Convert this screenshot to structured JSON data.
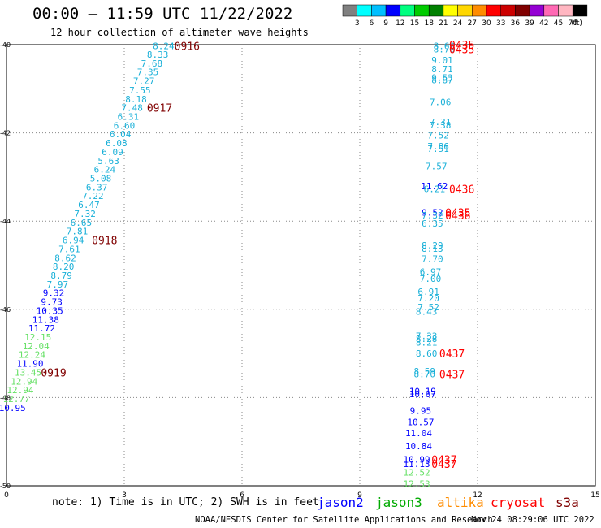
{
  "header": {
    "title": "00:00 — 11:59 UTC 11/22/2022",
    "subtitle": "12 hour collection of altimeter wave heights"
  },
  "scale": {
    "labels": [
      "3",
      "6",
      "9",
      "12",
      "15",
      "18",
      "21",
      "24",
      "27",
      "30",
      "33",
      "36",
      "39",
      "42",
      "45",
      "70"
    ],
    "unit": "(ft)",
    "colors": [
      "#808080",
      "#00ffff",
      "#00bfff",
      "#0000ff",
      "#00ff7f",
      "#00cc00",
      "#008000",
      "#ffff00",
      "#ffd700",
      "#ff8c00",
      "#ff0000",
      "#cc0000",
      "#800000",
      "#9400d3",
      "#ff69b4",
      "#ffb6c1",
      "#000000"
    ]
  },
  "chart_data": {
    "type": "scatter",
    "title": "00:00 — 11:59 UTC 11/22/2022",
    "xlim": [
      0,
      15
    ],
    "ylim": [
      -50,
      -40
    ],
    "x_ticks": [
      "0",
      "3",
      "6",
      "9",
      "12",
      "15"
    ],
    "y_ticks": [
      "-40",
      "-42",
      "-44",
      "-46",
      "-48",
      "-50"
    ],
    "points": [
      {
        "x": 4.0,
        "y": -40.03,
        "label": "8.24",
        "color": "#1ab0d8"
      },
      {
        "x": 3.85,
        "y": -40.22,
        "label": "8.33",
        "color": "#1ab0d8"
      },
      {
        "x": 3.7,
        "y": -40.42,
        "label": "7.68",
        "color": "#1ab0d8"
      },
      {
        "x": 3.6,
        "y": -40.62,
        "label": "7.35",
        "color": "#1ab0d8"
      },
      {
        "x": 3.5,
        "y": -40.82,
        "label": "7.27",
        "color": "#1ab0d8"
      },
      {
        "x": 3.4,
        "y": -41.03,
        "label": "7.55",
        "color": "#1ab0d8"
      },
      {
        "x": 3.3,
        "y": -41.23,
        "label": "8.18",
        "color": "#1ab0d8"
      },
      {
        "x": 3.2,
        "y": -41.43,
        "label": "7.48",
        "color": "#1ab0d8"
      },
      {
        "x": 3.1,
        "y": -41.63,
        "label": "6.31",
        "color": "#1ab0d8"
      },
      {
        "x": 3.0,
        "y": -41.83,
        "label": "6.60",
        "color": "#1ab0d8"
      },
      {
        "x": 2.9,
        "y": -42.03,
        "label": "6.04",
        "color": "#1ab0d8"
      },
      {
        "x": 2.8,
        "y": -42.23,
        "label": "6.08",
        "color": "#1ab0d8"
      },
      {
        "x": 2.7,
        "y": -42.43,
        "label": "6.09",
        "color": "#1ab0d8"
      },
      {
        "x": 2.6,
        "y": -42.63,
        "label": "5.63",
        "color": "#1ab0d8"
      },
      {
        "x": 2.5,
        "y": -42.83,
        "label": "6.24",
        "color": "#1ab0d8"
      },
      {
        "x": 2.4,
        "y": -43.03,
        "label": "5.08",
        "color": "#1ab0d8"
      },
      {
        "x": 2.3,
        "y": -43.23,
        "label": "6.37",
        "color": "#1ab0d8"
      },
      {
        "x": 2.2,
        "y": -43.43,
        "label": "7.22",
        "color": "#1ab0d8"
      },
      {
        "x": 2.1,
        "y": -43.63,
        "label": "6.47",
        "color": "#1ab0d8"
      },
      {
        "x": 2.0,
        "y": -43.83,
        "label": "7.32",
        "color": "#1ab0d8"
      },
      {
        "x": 1.9,
        "y": -44.03,
        "label": "6.65",
        "color": "#1ab0d8"
      },
      {
        "x": 1.8,
        "y": -44.23,
        "label": "7.81",
        "color": "#1ab0d8"
      },
      {
        "x": 1.7,
        "y": -44.43,
        "label": "6.94",
        "color": "#1ab0d8"
      },
      {
        "x": 1.6,
        "y": -44.63,
        "label": "7.61",
        "color": "#1ab0d8"
      },
      {
        "x": 1.5,
        "y": -44.83,
        "label": "8.62",
        "color": "#1ab0d8"
      },
      {
        "x": 1.45,
        "y": -45.03,
        "label": "8.20",
        "color": "#1ab0d8"
      },
      {
        "x": 1.4,
        "y": -45.23,
        "label": "8.79",
        "color": "#1ab0d8"
      },
      {
        "x": 1.3,
        "y": -45.43,
        "label": "7.97",
        "color": "#1ab0d8"
      },
      {
        "x": 1.2,
        "y": -45.63,
        "label": "9.32",
        "color": "#0000ff"
      },
      {
        "x": 1.15,
        "y": -45.83,
        "label": "9.73",
        "color": "#0000ff"
      },
      {
        "x": 1.1,
        "y": -46.03,
        "label": "10.35",
        "color": "#0000ff"
      },
      {
        "x": 1.0,
        "y": -46.23,
        "label": "11.38",
        "color": "#0000ff"
      },
      {
        "x": 0.9,
        "y": -46.43,
        "label": "11.72",
        "color": "#0000ff"
      },
      {
        "x": 0.8,
        "y": -46.63,
        "label": "12.15",
        "color": "#66e066"
      },
      {
        "x": 0.75,
        "y": -46.83,
        "label": "12.04",
        "color": "#66e066"
      },
      {
        "x": 0.65,
        "y": -47.03,
        "label": "12.24",
        "color": "#66e066"
      },
      {
        "x": 0.6,
        "y": -47.23,
        "label": "11.90",
        "color": "#0000ff"
      },
      {
        "x": 0.55,
        "y": -47.43,
        "label": "13.45",
        "color": "#66e066"
      },
      {
        "x": 0.45,
        "y": -47.63,
        "label": "12.94",
        "color": "#66e066"
      },
      {
        "x": 0.35,
        "y": -47.83,
        "label": "12.94",
        "color": "#66e066"
      },
      {
        "x": 0.25,
        "y": -48.03,
        "label": "12.77",
        "color": "#66e066"
      },
      {
        "x": 0.15,
        "y": -48.23,
        "label": "10.95",
        "color": "#0000ff"
      },
      {
        "x": 11.15,
        "y": -40.03,
        "label": "8.63",
        "color": "#1ab0d8"
      },
      {
        "x": 11.15,
        "y": -40.1,
        "label": "8.76",
        "color": "#1ab0d8"
      },
      {
        "x": 11.1,
        "y": -40.35,
        "label": "9.01",
        "color": "#1ab0d8"
      },
      {
        "x": 11.1,
        "y": -40.55,
        "label": "8.71",
        "color": "#1ab0d8"
      },
      {
        "x": 11.1,
        "y": -40.75,
        "label": "9.53",
        "color": "#1ab0d8"
      },
      {
        "x": 11.1,
        "y": -40.8,
        "label": "8.87",
        "color": "#1ab0d8"
      },
      {
        "x": 11.05,
        "y": -41.3,
        "label": "7.06",
        "color": "#1ab0d8"
      },
      {
        "x": 11.05,
        "y": -41.75,
        "label": "7.31",
        "color": "#1ab0d8"
      },
      {
        "x": 11.05,
        "y": -41.82,
        "label": "7.38",
        "color": "#1ab0d8"
      },
      {
        "x": 11.0,
        "y": -42.05,
        "label": "7.52",
        "color": "#1ab0d8"
      },
      {
        "x": 11.0,
        "y": -42.3,
        "label": "7.86",
        "color": "#1ab0d8"
      },
      {
        "x": 11.0,
        "y": -42.36,
        "label": "7.51",
        "color": "#1ab0d8"
      },
      {
        "x": 10.95,
        "y": -42.75,
        "label": "7.57",
        "color": "#1ab0d8"
      },
      {
        "x": 10.9,
        "y": -43.2,
        "label": "11.62",
        "color": "#0000ff"
      },
      {
        "x": 10.9,
        "y": -43.27,
        "label": "6.21",
        "color": "#1ab0d8"
      },
      {
        "x": 10.85,
        "y": -43.8,
        "label": "9.52",
        "color": "#0000ff"
      },
      {
        "x": 10.85,
        "y": -43.87,
        "label": "7.32",
        "color": "#1ab0d8"
      },
      {
        "x": 10.85,
        "y": -44.05,
        "label": "6.35",
        "color": "#1ab0d8"
      },
      {
        "x": 10.85,
        "y": -44.55,
        "label": "8.29",
        "color": "#1ab0d8"
      },
      {
        "x": 10.85,
        "y": -44.62,
        "label": "8.13",
        "color": "#1ab0d8"
      },
      {
        "x": 10.85,
        "y": -44.85,
        "label": "7.70",
        "color": "#1ab0d8"
      },
      {
        "x": 10.8,
        "y": -45.15,
        "label": "6.97",
        "color": "#1ab0d8"
      },
      {
        "x": 10.8,
        "y": -45.3,
        "label": "7.00",
        "color": "#1ab0d8"
      },
      {
        "x": 10.75,
        "y": -45.6,
        "label": "6.91",
        "color": "#1ab0d8"
      },
      {
        "x": 10.75,
        "y": -45.75,
        "label": "7.20",
        "color": "#1ab0d8"
      },
      {
        "x": 10.75,
        "y": -45.95,
        "label": "7.52",
        "color": "#1ab0d8"
      },
      {
        "x": 10.7,
        "y": -46.05,
        "label": "8.43",
        "color": "#1ab0d8"
      },
      {
        "x": 10.7,
        "y": -46.6,
        "label": "7.33",
        "color": "#1ab0d8"
      },
      {
        "x": 10.7,
        "y": -46.67,
        "label": "8.28",
        "color": "#1ab0d8"
      },
      {
        "x": 10.7,
        "y": -46.75,
        "label": "8.21",
        "color": "#1ab0d8"
      },
      {
        "x": 10.7,
        "y": -47.0,
        "label": "8.60",
        "color": "#1ab0d8"
      },
      {
        "x": 10.65,
        "y": -47.4,
        "label": "8.59",
        "color": "#1ab0d8"
      },
      {
        "x": 10.65,
        "y": -47.47,
        "label": "8.70",
        "color": "#1ab0d8"
      },
      {
        "x": 10.6,
        "y": -47.85,
        "label": "10.19",
        "color": "#0000ff"
      },
      {
        "x": 10.6,
        "y": -47.92,
        "label": "10.07",
        "color": "#0000ff"
      },
      {
        "x": 10.55,
        "y": -48.3,
        "label": "9.95",
        "color": "#0000ff"
      },
      {
        "x": 10.55,
        "y": -48.55,
        "label": "10.57",
        "color": "#0000ff"
      },
      {
        "x": 10.5,
        "y": -48.8,
        "label": "11.04",
        "color": "#0000ff"
      },
      {
        "x": 10.5,
        "y": -49.1,
        "label": "10.84",
        "color": "#0000ff"
      },
      {
        "x": 10.45,
        "y": -49.4,
        "label": "10.99",
        "color": "#0000ff"
      },
      {
        "x": 10.45,
        "y": -49.5,
        "label": "11.13",
        "color": "#0000ff"
      },
      {
        "x": 10.45,
        "y": -49.7,
        "label": "12.52",
        "color": "#66e066"
      },
      {
        "x": 10.45,
        "y": -49.95,
        "label": "12.53",
        "color": "#66e066"
      }
    ],
    "annotations": [
      {
        "x": 4.6,
        "y": -40.03,
        "text": "0916",
        "color": "#800000"
      },
      {
        "x": 3.9,
        "y": -41.43,
        "text": "0917",
        "color": "#800000"
      },
      {
        "x": 2.5,
        "y": -44.43,
        "text": "0918",
        "color": "#800000"
      },
      {
        "x": 1.2,
        "y": -47.43,
        "text": "0919",
        "color": "#800000"
      },
      {
        "x": 11.6,
        "y": -40.0,
        "text": "0435",
        "color": "#ff0000"
      },
      {
        "x": 11.6,
        "y": -40.1,
        "text": "0435",
        "color": "#ff0000"
      },
      {
        "x": 11.6,
        "y": -43.27,
        "text": "0436",
        "color": "#ff0000"
      },
      {
        "x": 11.5,
        "y": -43.8,
        "text": "0435",
        "color": "#ff0000"
      },
      {
        "x": 11.5,
        "y": -43.87,
        "text": "0436",
        "color": "#ff0000"
      },
      {
        "x": 11.35,
        "y": -47.0,
        "text": "0437",
        "color": "#ff0000"
      },
      {
        "x": 11.35,
        "y": -47.47,
        "text": "0437",
        "color": "#ff0000"
      },
      {
        "x": 11.15,
        "y": -49.4,
        "text": "0437",
        "color": "#ff0000"
      },
      {
        "x": 11.15,
        "y": -49.5,
        "text": "0437",
        "color": "#ff0000"
      }
    ]
  },
  "footer": {
    "note": "note: 1) Time is in UTC; 2) SWH is in feet",
    "satellites": [
      {
        "name": "jason2",
        "color": "#0000ff"
      },
      {
        "name": "jason3",
        "color": "#00aa00"
      },
      {
        "name": "altika",
        "color": "#ff8c00"
      },
      {
        "name": "cryosat",
        "color": "#ff0000"
      },
      {
        "name": "s3a",
        "color": "#800000"
      }
    ],
    "credit": "NOAA/NESDIS Center for Satellite Applications and Research",
    "timestamp": "Nov 24 08:29:06 UTC 2022"
  }
}
